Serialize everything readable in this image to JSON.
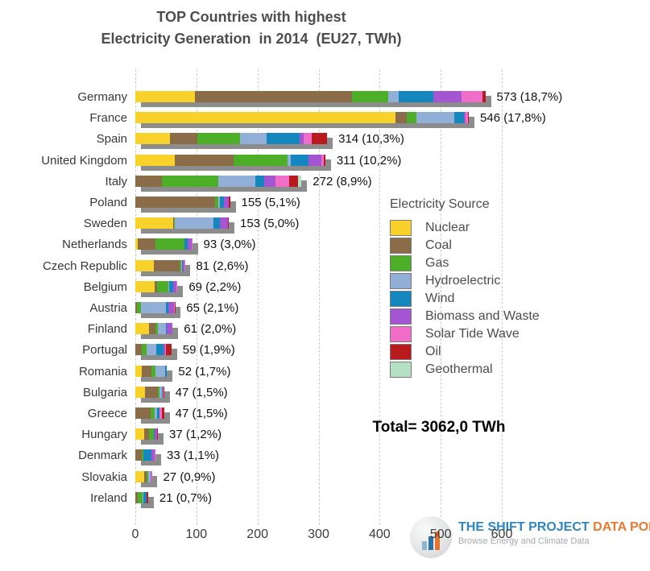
{
  "title": {
    "line1": "TOP Countries with highest",
    "line2": "Electricity Generation  in 2014  (EU27, TWh)"
  },
  "total_label": "Total= 3062,0 TWh",
  "chart_data": {
    "type": "bar",
    "orientation": "horizontal-stacked",
    "title": "TOP Countries with highest Electricity Generation in 2014 (EU27, TWh)",
    "xlabel": "",
    "ylabel": "",
    "xlim": [
      0,
      600
    ],
    "x_ticks": [
      0,
      100,
      200,
      300,
      400,
      500,
      600
    ],
    "grid": "vertical-dashed",
    "legend_title": "Electricity Source",
    "legend_position": "middle-right",
    "categories": [
      "Germany",
      "France",
      "Spain",
      "United Kingdom",
      "Italy",
      "Poland",
      "Sweden",
      "Netherlands",
      "Czech Republic",
      "Belgium",
      "Austria",
      "Finland",
      "Portugal",
      "Romania",
      "Bulgaria",
      "Greece",
      "Hungary",
      "Denmark",
      "Slovakia",
      "Ireland"
    ],
    "totals": [
      573,
      546,
      314,
      311,
      272,
      155,
      153,
      93,
      81,
      69,
      65,
      61,
      59,
      52,
      47,
      47,
      37,
      33,
      27,
      21
    ],
    "total_labels": [
      "573 (18,7%)",
      "546 (17,8%)",
      "314 (10,3%)",
      "311 (10,2%)",
      "272 (8,9%)",
      "155 (5,1%)",
      "153 (5,0%)",
      "93 (3,0%)",
      "81 (2,6%)",
      "69 (2,2%)",
      "65 (2,1%)",
      "61 (2,0%)",
      "59 (1,9%)",
      "52 (1,7%)",
      "47 (1,5%)",
      "47 (1,5%)",
      "37 (1,2%)",
      "33 (1,1%)",
      "27 (0,9%)",
      "21 (0,7%)"
    ],
    "grand_total": "3062,0",
    "series": [
      {
        "name": "Nuclear",
        "color": "#F8D22A",
        "values": [
          97,
          426,
          57,
          64,
          0,
          0,
          62,
          4,
          30,
          32,
          0,
          23,
          0,
          11,
          16,
          0,
          15,
          0,
          15,
          0
        ]
      },
      {
        "name": "Coal",
        "color": "#8A6C48",
        "values": [
          258,
          18,
          45,
          97,
          43,
          131,
          1,
          29,
          42,
          4,
          3,
          10,
          11,
          16,
          21,
          25,
          7,
          11,
          3,
          4
        ]
      },
      {
        "name": "Gas",
        "color": "#4CAF27",
        "values": [
          59,
          16,
          70,
          88,
          93,
          5,
          1,
          47,
          3,
          18,
          6,
          4,
          7,
          6,
          2,
          7,
          8,
          2,
          3,
          8
        ]
      },
      {
        "name": "Hydroelectric",
        "color": "#92AFD7",
        "values": [
          17,
          62,
          43,
          6,
          60,
          2,
          64,
          0,
          2,
          1,
          41,
          13,
          16,
          16,
          5,
          4,
          0,
          0,
          4,
          1
        ]
      },
      {
        "name": "Wind",
        "color": "#1487BF",
        "values": [
          57,
          16,
          54,
          28,
          15,
          7,
          11,
          6,
          1,
          7,
          4,
          1,
          12,
          3,
          1,
          4,
          1,
          13,
          0,
          5
        ]
      },
      {
        "name": "Biomass and Waste",
        "color": "#A455D2",
        "values": [
          46,
          3,
          6,
          22,
          19,
          8,
          12,
          6,
          2,
          5,
          9,
          10,
          3,
          0,
          0,
          0,
          5,
          6,
          1,
          1
        ]
      },
      {
        "name": "Solar Tide Wave",
        "color": "#F06EC7",
        "values": [
          34,
          4,
          14,
          4,
          22,
          0,
          0,
          1,
          1,
          2,
          1,
          0,
          1,
          0,
          1,
          4,
          0,
          1,
          1,
          0
        ]
      },
      {
        "name": "Oil",
        "color": "#B91A1E",
        "values": [
          5,
          1,
          25,
          2,
          14,
          2,
          2,
          0,
          0,
          0,
          1,
          0,
          9,
          0,
          1,
          3,
          1,
          0,
          0,
          2
        ]
      },
      {
        "name": "Geothermal",
        "color": "#B4E0C4",
        "values": [
          0,
          0,
          0,
          0,
          6,
          0,
          0,
          0,
          0,
          0,
          0,
          0,
          0,
          0,
          0,
          0,
          0,
          0,
          0,
          0
        ]
      }
    ]
  },
  "logo": {
    "icon": "bar-chart-circle-icon",
    "title_primary": "THE SHIFT PROJECT",
    "title_secondary": " DATA PORTAL",
    "subtitle": "Browse Energy and Climate Data"
  },
  "colors": {
    "bar_shadow": "#8c8c8c",
    "gridline": "#cccccc",
    "title_text": "#4d4d4d",
    "axis_text": "#3c3c3c",
    "logo_blue": "#2e86c5",
    "logo_orange": "#e87a2e"
  }
}
